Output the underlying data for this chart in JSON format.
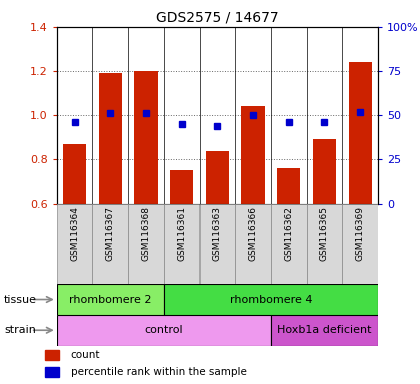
{
  "title": "GDS2575 / 14677",
  "samples": [
    "GSM116364",
    "GSM116367",
    "GSM116368",
    "GSM116361",
    "GSM116363",
    "GSM116366",
    "GSM116362",
    "GSM116365",
    "GSM116369"
  ],
  "count_values": [
    0.87,
    1.19,
    1.2,
    0.75,
    0.84,
    1.04,
    0.76,
    0.89,
    1.24
  ],
  "percentile_values": [
    46,
    51,
    51,
    45,
    44,
    50,
    46,
    46,
    52
  ],
  "ylim_left": [
    0.6,
    1.4
  ],
  "ylim_right": [
    0,
    100
  ],
  "yticks_left": [
    0.6,
    0.8,
    1.0,
    1.2,
    1.4
  ],
  "yticks_right": [
    0,
    25,
    50,
    75,
    100
  ],
  "ytick_labels_right": [
    "0",
    "25",
    "50",
    "75",
    "100%"
  ],
  "bar_color": "#cc2200",
  "dot_color": "#0000cc",
  "bar_bottom": 0.6,
  "tissue_groups": [
    {
      "label": "rhombomere 2",
      "start": 0,
      "end": 3,
      "color": "#88ee66"
    },
    {
      "label": "rhombomere 4",
      "start": 3,
      "end": 9,
      "color": "#44dd44"
    }
  ],
  "strain_groups": [
    {
      "label": "control",
      "start": 0,
      "end": 6,
      "color": "#ee99ee"
    },
    {
      "label": "Hoxb1a deficient",
      "start": 6,
      "end": 9,
      "color": "#cc55cc"
    }
  ],
  "tick_color_left": "#cc2200",
  "tick_color_right": "#0000cc",
  "grid_color": "#666666",
  "sample_bg_color": "#d8d8d8",
  "plot_bg": "#ffffff",
  "legend_items": [
    {
      "color": "#cc2200",
      "label": "count"
    },
    {
      "color": "#0000cc",
      "label": "percentile rank within the sample"
    }
  ]
}
